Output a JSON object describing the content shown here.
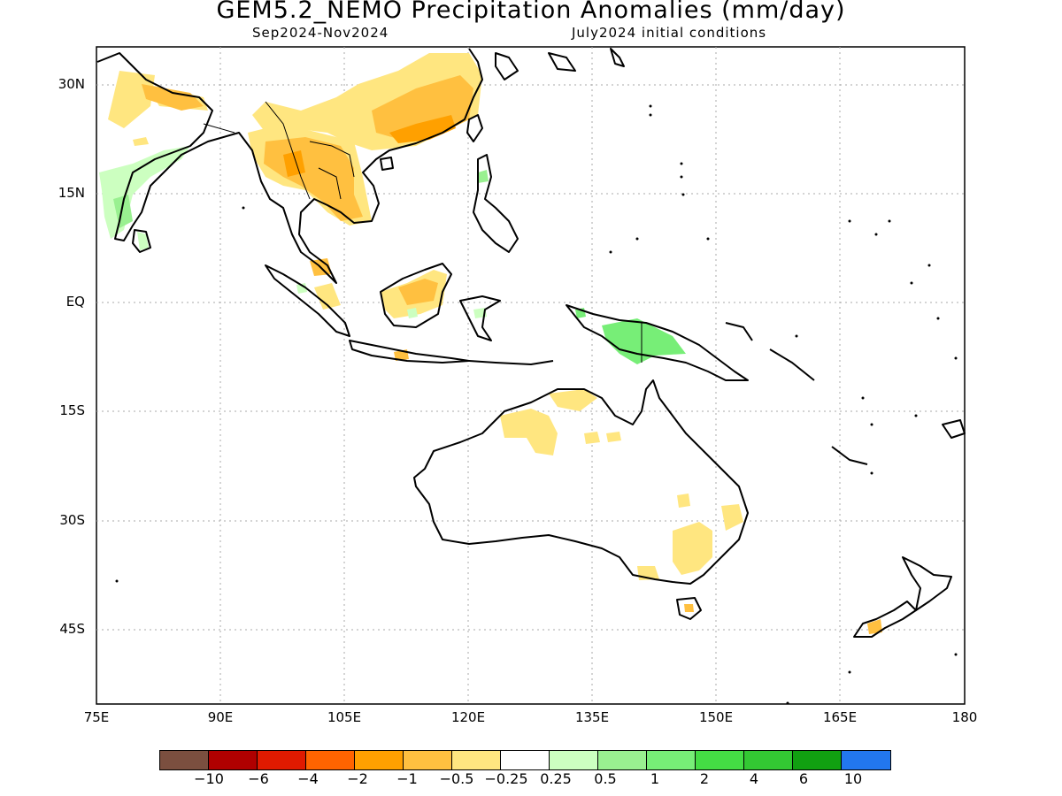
{
  "title": "GEM5.2_NEMO Precipitation Anomalies (mm/day)",
  "period": "Sep2024-Nov2024",
  "init": "July2024 initial conditions",
  "lat_labels": [
    "30N",
    "15N",
    "EQ",
    "15S",
    "30S",
    "45S"
  ],
  "lon_labels": [
    "75E",
    "90E",
    "105E",
    "120E",
    "135E",
    "150E",
    "165E",
    "180"
  ],
  "legend": {
    "colors": [
      "#7b4f3f",
      "#b00000",
      "#e01a00",
      "#ff6400",
      "#ffa000",
      "#ffc040",
      "#ffe680",
      "#ffffff",
      "#ccffc0",
      "#99f090",
      "#77ee77",
      "#44dd44",
      "#33c833",
      "#11a011",
      "#2277ee"
    ],
    "labels": [
      "-10",
      "-6",
      "-4",
      "-2",
      "-1",
      "-0.5",
      "-0.25",
      "0.25",
      "0.5",
      "1",
      "2",
      "4",
      "6",
      "10"
    ]
  }
}
